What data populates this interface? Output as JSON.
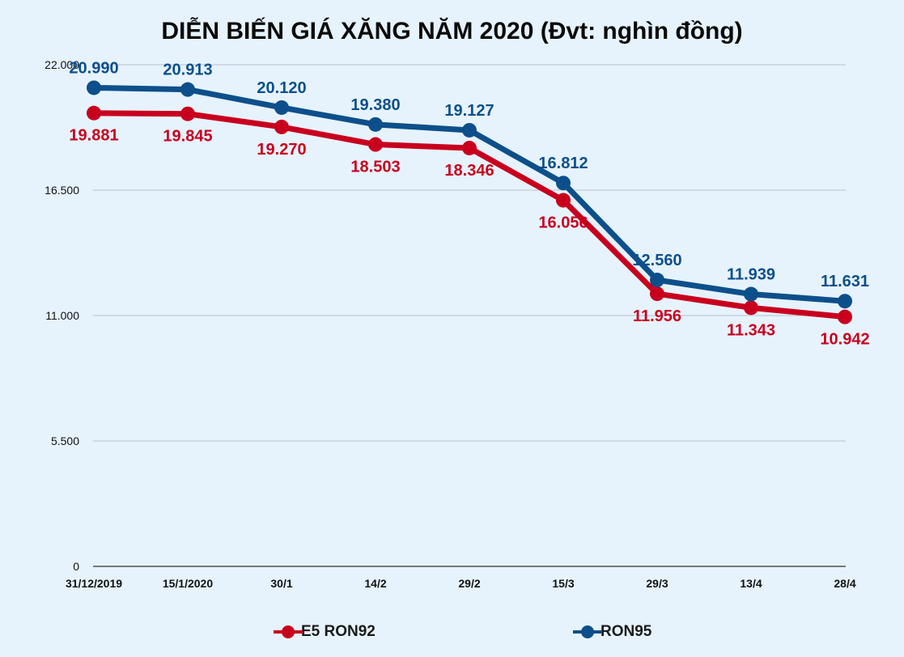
{
  "chart_data": {
    "type": "line",
    "title": "DIỄN BIẾN GIÁ XĂNG NĂM 2020 (Đvt: nghìn đồng)",
    "categories": [
      "31/12/2019",
      "15/1/2020",
      "30/1",
      "14/2",
      "29/2",
      "15/3",
      "29/3",
      "13/4",
      "28/4"
    ],
    "ylim": [
      0,
      22000
    ],
    "yticks": [
      0,
      5500,
      11000,
      16500,
      22000
    ],
    "ytick_labels": [
      "0",
      "5.500",
      "11.000",
      "16.500",
      "22.000"
    ],
    "grid": true,
    "legend_position": "bottom",
    "series": [
      {
        "name": "E5 RON92",
        "color": "#c8001e",
        "values": [
          19881,
          19845,
          19270,
          18503,
          18346,
          16056,
          11956,
          11343,
          10942
        ],
        "labels": [
          "19.881",
          "19.845",
          "19.270",
          "18.503",
          "18.346",
          "16.056",
          "11.956",
          "11.343",
          "10.942"
        ],
        "label_position": "below"
      },
      {
        "name": "RON95",
        "color": "#0d4f8b",
        "values": [
          20990,
          20913,
          20120,
          19380,
          19127,
          16812,
          12560,
          11939,
          11631
        ],
        "labels": [
          "20.990",
          "20.913",
          "20.120",
          "19.380",
          "19.127",
          "16.812",
          "12.560",
          "11.939",
          "11.631"
        ],
        "label_position": "above"
      }
    ]
  }
}
